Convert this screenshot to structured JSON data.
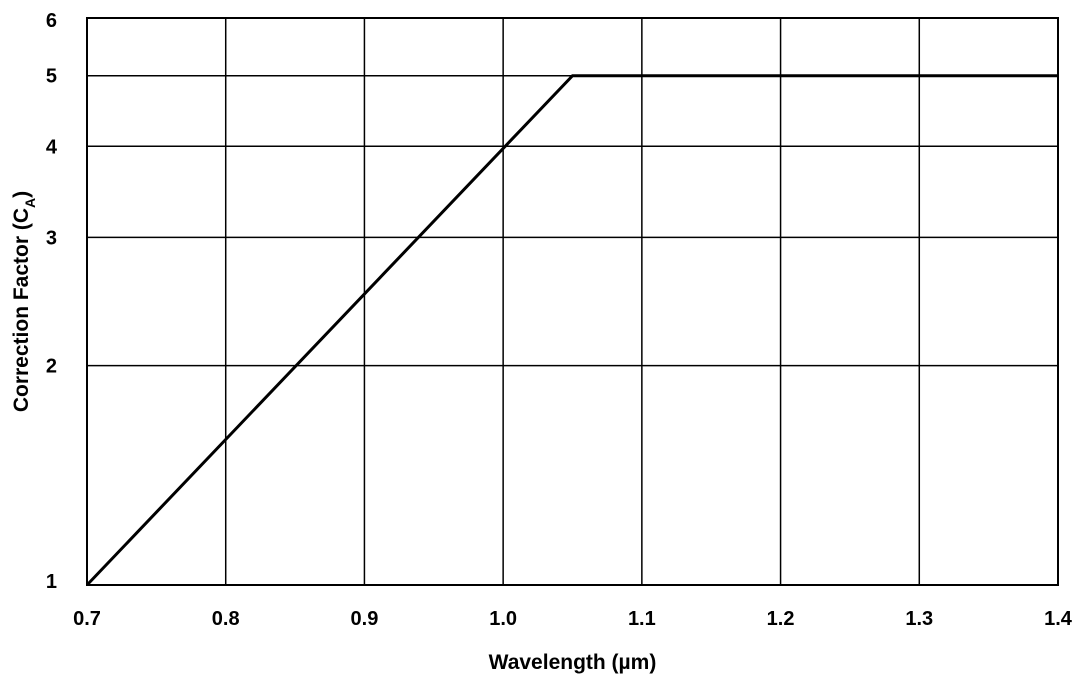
{
  "chart_data": {
    "type": "line",
    "title": "",
    "xlabel": "Wavelength (µm)",
    "ylabel_main": "Correction Factor (C",
    "ylabel_sub": "A",
    "ylabel_close": ")",
    "x_scale": "linear",
    "y_scale": "log",
    "xlim": [
      0.7,
      1.4
    ],
    "ylim": [
      1,
      6
    ],
    "x_ticks": [
      0.7,
      0.8,
      0.9,
      1.0,
      1.1,
      1.2,
      1.3,
      1.4
    ],
    "x_tick_labels": [
      "0.7",
      "0.8",
      "0.9",
      "1.0",
      "1.1",
      "1.2",
      "1.3",
      "1.4"
    ],
    "y_ticks": [
      1,
      2,
      3,
      4,
      5,
      6
    ],
    "y_tick_labels": [
      "1",
      "2",
      "3",
      "4",
      "5",
      "6"
    ],
    "grid": true,
    "line_color": "#000000",
    "series": [
      {
        "x": [
          0.7,
          1.05,
          1.4
        ],
        "y": [
          1,
          5,
          5
        ]
      }
    ]
  }
}
